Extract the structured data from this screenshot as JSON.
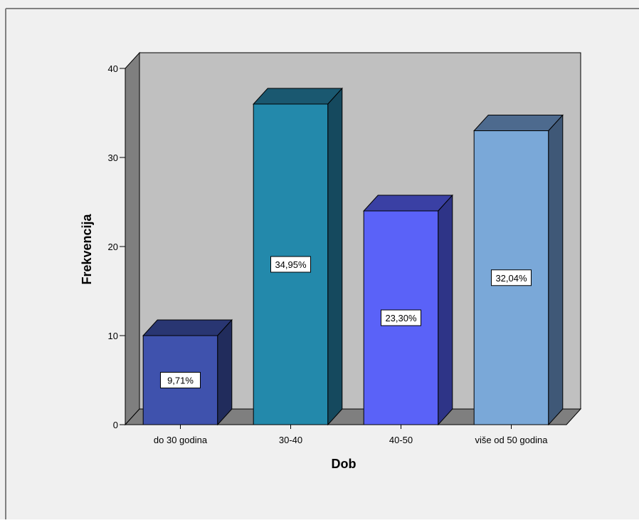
{
  "chart_data": {
    "type": "bar",
    "style": "3d",
    "xlabel": "Dob",
    "ylabel": "Frekvencija",
    "categories": [
      "do 30 godina",
      "30-40",
      "40-50",
      "više od 50 godina"
    ],
    "values": [
      10,
      36,
      24,
      33
    ],
    "data_labels": [
      "9,71%",
      "34,95%",
      "23,30%",
      "32,04%"
    ],
    "ylim": [
      0,
      40
    ],
    "yticks": [
      0,
      10,
      20,
      30,
      40
    ],
    "grid": false,
    "legend": "none",
    "colors": {
      "bars": [
        "#3f52ad",
        "#2389ab",
        "#5a62f8",
        "#7aa8d8"
      ],
      "bar_tops": [
        "#293672",
        "#1a5870",
        "#3a40a4",
        "#4d6a8e"
      ],
      "bar_sides": [
        "#212c5c",
        "#15495e",
        "#2e3487",
        "#3f5877"
      ],
      "back_wall": "#c0c0c0",
      "side_wall": "#7f7f7f",
      "floor": "#7f7f7f",
      "page_background": "#f0f0f0",
      "outline": "#000000"
    }
  }
}
